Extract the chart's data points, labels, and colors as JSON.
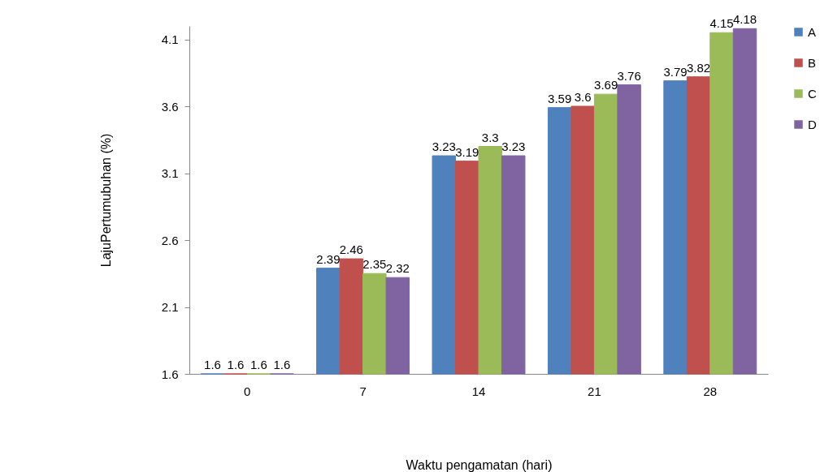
{
  "chart_data": {
    "type": "bar",
    "xlabel": "Waktu pengamatan (hari)",
    "ylabel": "LajuPertumubuhan (%)",
    "categories": [
      "0",
      "7",
      "14",
      "21",
      "28"
    ],
    "series": [
      {
        "name": "A",
        "color": "#4f81bd",
        "values": [
          1.6,
          2.39,
          3.23,
          3.59,
          3.79
        ]
      },
      {
        "name": "B",
        "color": "#c0504d",
        "values": [
          1.6,
          2.46,
          3.19,
          3.6,
          3.82
        ]
      },
      {
        "name": "C",
        "color": "#9bbb59",
        "values": [
          1.6,
          2.35,
          3.3,
          3.69,
          4.15
        ]
      },
      {
        "name": "D",
        "color": "#8064a2",
        "values": [
          1.6,
          2.32,
          3.23,
          3.76,
          4.18
        ]
      }
    ],
    "ylim": [
      1.6,
      4.2
    ],
    "yticks": [
      1.6,
      2.1,
      2.6,
      3.1,
      3.6,
      4.1
    ],
    "data_labels": true,
    "legend": "right",
    "grid": false
  }
}
